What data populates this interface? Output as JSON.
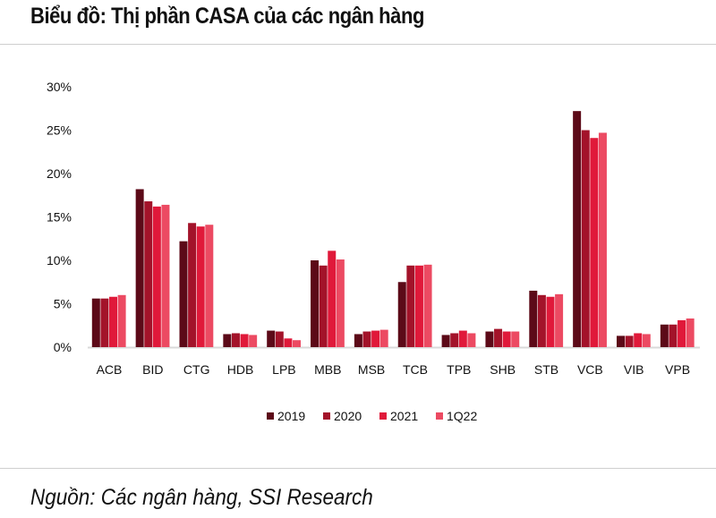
{
  "header": {
    "title": "Biểu đồ: Thị phần CASA của các ngân hàng"
  },
  "footer": {
    "source": "Nguồn: Các ngân hàng, SSI Research"
  },
  "chart_data": {
    "type": "bar",
    "title": "Biểu đồ: Thị phần CASA của các ngân hàng",
    "categories": [
      "ACB",
      "BID",
      "CTG",
      "HDB",
      "LPB",
      "MBB",
      "MSB",
      "TCB",
      "TPB",
      "SHB",
      "STB",
      "VCB",
      "VIB",
      "VPB"
    ],
    "series": [
      {
        "name": "2019",
        "color": "#5c0a18",
        "values": [
          5.6,
          18.2,
          12.2,
          1.5,
          1.9,
          10.0,
          1.5,
          7.5,
          1.4,
          1.8,
          6.5,
          27.2,
          1.3,
          2.6
        ]
      },
      {
        "name": "2020",
        "color": "#a3132a",
        "values": [
          5.6,
          16.8,
          14.3,
          1.6,
          1.8,
          9.4,
          1.8,
          9.4,
          1.6,
          2.1,
          6.0,
          25.0,
          1.3,
          2.6
        ]
      },
      {
        "name": "2021",
        "color": "#e0193a",
        "values": [
          5.8,
          16.2,
          13.9,
          1.5,
          1.0,
          11.1,
          1.9,
          9.4,
          1.9,
          1.8,
          5.8,
          24.1,
          1.6,
          3.1
        ]
      },
      {
        "name": "1Q22",
        "color": "#ec4a62",
        "values": [
          6.0,
          16.4,
          14.1,
          1.4,
          0.8,
          10.1,
          2.0,
          9.5,
          1.6,
          1.8,
          6.1,
          24.7,
          1.5,
          3.3
        ]
      }
    ],
    "yticks": [
      "0%",
      "5%",
      "10%",
      "15%",
      "20%",
      "25%",
      "30%"
    ],
    "ylim": [
      0,
      30
    ],
    "grid": false,
    "legend": "bottom"
  }
}
